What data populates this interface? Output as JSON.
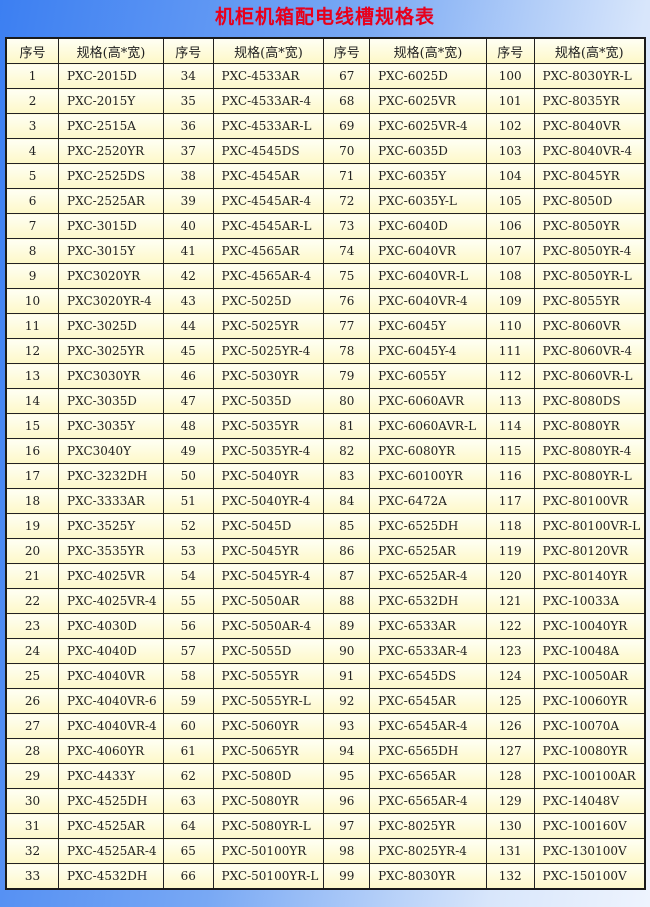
{
  "title": "机柜机箱配电线槽规格表",
  "headers": {
    "no": "序号",
    "spec": "规格(高*宽)"
  },
  "colors": {
    "title": "#e8001c",
    "cell": "#fdf8c8"
  },
  "columns": [
    [
      [
        "1",
        "PXC-2015D"
      ],
      [
        "2",
        "PXC-2015Y"
      ],
      [
        "3",
        "PXC-2515A"
      ],
      [
        "4",
        "PXC-2520YR"
      ],
      [
        "5",
        "PXC-2525DS"
      ],
      [
        "6",
        "PXC-2525AR"
      ],
      [
        "7",
        "PXC-3015D"
      ],
      [
        "8",
        "PXC-3015Y"
      ],
      [
        "9",
        "PXC3020YR"
      ],
      [
        "10",
        "PXC3020YR-4"
      ],
      [
        "11",
        "PXC-3025D"
      ],
      [
        "12",
        "PXC-3025YR"
      ],
      [
        "13",
        "PXC3030YR"
      ],
      [
        "14",
        "PXC-3035D"
      ],
      [
        "15",
        "PXC-3035Y"
      ],
      [
        "16",
        "PXC3040Y"
      ],
      [
        "17",
        "PXC-3232DH"
      ],
      [
        "18",
        "PXC-3333AR"
      ],
      [
        "19",
        "PXC-3525Y"
      ],
      [
        "20",
        "PXC-3535YR"
      ],
      [
        "21",
        "PXC-4025VR"
      ],
      [
        "22",
        "PXC-4025VR-4"
      ],
      [
        "23",
        "PXC-4030D"
      ],
      [
        "24",
        "PXC-4040D"
      ],
      [
        "25",
        "PXC-4040VR"
      ],
      [
        "26",
        "PXC-4040VR-6"
      ],
      [
        "27",
        "PXC-4040VR-4"
      ],
      [
        "28",
        "PXC-4060YR"
      ],
      [
        "29",
        "PXC-4433Y"
      ],
      [
        "30",
        "PXC-4525DH"
      ],
      [
        "31",
        "PXC-4525AR"
      ],
      [
        "32",
        "PXC-4525AR-4"
      ],
      [
        "33",
        "PXC-4532DH"
      ]
    ],
    [
      [
        "34",
        "PXC-4533AR"
      ],
      [
        "35",
        "PXC-4533AR-4"
      ],
      [
        "36",
        "PXC-4533AR-L"
      ],
      [
        "37",
        "PXC-4545DS"
      ],
      [
        "38",
        "PXC-4545AR"
      ],
      [
        "39",
        "PXC-4545AR-4"
      ],
      [
        "40",
        "PXC-4545AR-L"
      ],
      [
        "41",
        "PXC-4565AR"
      ],
      [
        "42",
        "PXC-4565AR-4"
      ],
      [
        "43",
        "PXC-5025D"
      ],
      [
        "44",
        "PXC-5025YR"
      ],
      [
        "45",
        "PXC-5025YR-4"
      ],
      [
        "46",
        "PXC-5030YR"
      ],
      [
        "47",
        "PXC-5035D"
      ],
      [
        "48",
        "PXC-5035YR"
      ],
      [
        "49",
        "PXC-5035YR-4"
      ],
      [
        "50",
        "PXC-5040YR"
      ],
      [
        "51",
        "PXC-5040YR-4"
      ],
      [
        "52",
        "PXC-5045D"
      ],
      [
        "53",
        "PXC-5045YR"
      ],
      [
        "54",
        "PXC-5045YR-4"
      ],
      [
        "55",
        "PXC-5050AR"
      ],
      [
        "56",
        "PXC-5050AR-4"
      ],
      [
        "57",
        "PXC-5055D"
      ],
      [
        "58",
        "PXC-5055YR"
      ],
      [
        "59",
        "PXC-5055YR-L"
      ],
      [
        "60",
        "PXC-5060YR"
      ],
      [
        "61",
        "PXC-5065YR"
      ],
      [
        "62",
        "PXC-5080D"
      ],
      [
        "63",
        "PXC-5080YR"
      ],
      [
        "64",
        "PXC-5080YR-L"
      ],
      [
        "65",
        "PXC-50100YR"
      ],
      [
        "66",
        "PXC-50100YR-L"
      ]
    ],
    [
      [
        "67",
        "PXC-6025D"
      ],
      [
        "68",
        "PXC-6025VR"
      ],
      [
        "69",
        "PXC-6025VR-4"
      ],
      [
        "70",
        "PXC-6035D"
      ],
      [
        "71",
        "PXC-6035Y"
      ],
      [
        "72",
        "PXC-6035Y-L"
      ],
      [
        "73",
        "PXC-6040D"
      ],
      [
        "74",
        "PXC-6040VR"
      ],
      [
        "75",
        "PXC-6040VR-L"
      ],
      [
        "76",
        "PXC-6040VR-4"
      ],
      [
        "77",
        "PXC-6045Y"
      ],
      [
        "78",
        "PXC-6045Y-4"
      ],
      [
        "79",
        "PXC-6055Y"
      ],
      [
        "80",
        "PXC-6060AVR"
      ],
      [
        "81",
        "PXC-6060AVR-L"
      ],
      [
        "82",
        "PXC-6080YR"
      ],
      [
        "83",
        "PXC-60100YR"
      ],
      [
        "84",
        "PXC-6472A"
      ],
      [
        "85",
        "PXC-6525DH"
      ],
      [
        "86",
        "PXC-6525AR"
      ],
      [
        "87",
        "PXC-6525AR-4"
      ],
      [
        "88",
        "PXC-6532DH"
      ],
      [
        "89",
        "PXC-6533AR"
      ],
      [
        "90",
        "PXC-6533AR-4"
      ],
      [
        "91",
        "PXC-6545DS"
      ],
      [
        "92",
        "PXC-6545AR"
      ],
      [
        "93",
        "PXC-6545AR-4"
      ],
      [
        "94",
        "PXC-6565DH"
      ],
      [
        "95",
        "PXC-6565AR"
      ],
      [
        "96",
        "PXC-6565AR-4"
      ],
      [
        "97",
        "PXC-8025YR"
      ],
      [
        "98",
        "PXC-8025YR-4"
      ],
      [
        "99",
        "PXC-8030YR"
      ]
    ],
    [
      [
        "100",
        "PXC-8030YR-L"
      ],
      [
        "101",
        "PXC-8035YR"
      ],
      [
        "102",
        "PXC-8040VR"
      ],
      [
        "103",
        "PXC-8040VR-4"
      ],
      [
        "104",
        "PXC-8045YR"
      ],
      [
        "105",
        "PXC-8050D"
      ],
      [
        "106",
        "PXC-8050YR"
      ],
      [
        "107",
        "PXC-8050YR-4"
      ],
      [
        "108",
        "PXC-8050YR-L"
      ],
      [
        "109",
        "PXC-8055YR"
      ],
      [
        "110",
        "PXC-8060VR"
      ],
      [
        "111",
        "PXC-8060VR-4"
      ],
      [
        "112",
        "PXC-8060VR-L"
      ],
      [
        "113",
        "PXC-8080DS"
      ],
      [
        "114",
        "PXC-8080YR"
      ],
      [
        "115",
        "PXC-8080YR-4"
      ],
      [
        "116",
        "PXC-8080YR-L"
      ],
      [
        "117",
        "PXC-80100VR"
      ],
      [
        "118",
        "PXC-80100VR-L"
      ],
      [
        "119",
        "PXC-80120VR"
      ],
      [
        "120",
        "PXC-80140YR"
      ],
      [
        "121",
        "PXC-10033A"
      ],
      [
        "122",
        "PXC-10040YR"
      ],
      [
        "123",
        "PXC-10048A"
      ],
      [
        "124",
        "PXC-10050AR"
      ],
      [
        "125",
        "PXC-10060YR"
      ],
      [
        "126",
        "PXC-10070A"
      ],
      [
        "127",
        "PXC-10080YR"
      ],
      [
        "128",
        "PXC-100100AR"
      ],
      [
        "129",
        "PXC-14048V"
      ],
      [
        "130",
        "PXC-100160V"
      ],
      [
        "131",
        "PXC-130100V"
      ],
      [
        "132",
        "PXC-150100V"
      ]
    ]
  ]
}
